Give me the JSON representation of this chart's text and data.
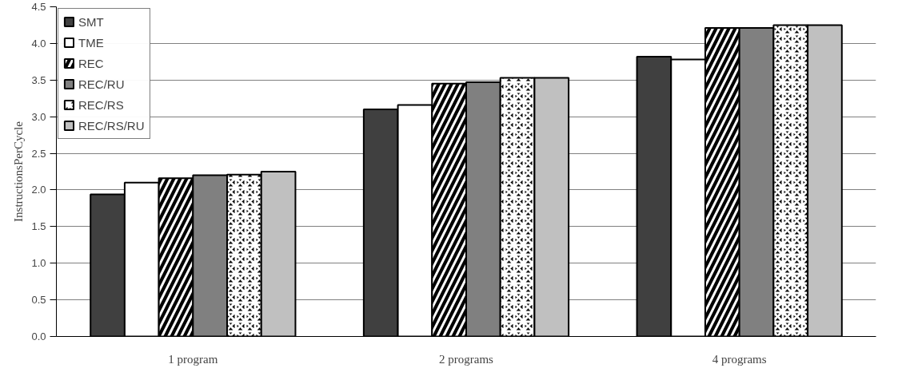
{
  "chart_data": {
    "type": "bar",
    "ylabel": "InstructionsPerCycle",
    "categories": [
      "1 program",
      "2 programs",
      "4 programs"
    ],
    "series": [
      {
        "name": "SMT",
        "color": "#404040",
        "values": [
          1.94,
          3.1,
          3.82
        ]
      },
      {
        "name": "TME",
        "color": "#ffffff",
        "values": [
          2.1,
          3.16,
          3.78
        ]
      },
      {
        "name": "REC",
        "color": "#000000",
        "values": [
          2.16,
          3.45,
          4.21
        ]
      },
      {
        "name": "REC/RU",
        "color": "#808080",
        "values": [
          2.2,
          3.47,
          4.21
        ]
      },
      {
        "name": "REC/RS",
        "color": "#000000",
        "values": [
          2.21,
          3.53,
          4.25
        ]
      },
      {
        "name": "REC/RS/RU",
        "color": "#c0c0c0",
        "values": [
          2.25,
          3.53,
          4.25
        ]
      }
    ],
    "ylim": [
      0,
      4.5
    ],
    "yticks": [
      {
        "value": 0,
        "label": "0.0"
      },
      {
        "value": 0.5,
        "label": "0.5"
      },
      {
        "value": 1,
        "label": "1.0"
      },
      {
        "value": 1.5,
        "label": "1.5"
      },
      {
        "value": 2,
        "label": "2.0"
      },
      {
        "value": 2.5,
        "label": "2.5"
      },
      {
        "value": 3,
        "label": "3.0"
      },
      {
        "value": 3.5,
        "label": "3.5"
      },
      {
        "value": 4,
        "label": "4.0"
      },
      {
        "value": 4.5,
        "label": "4.5"
      }
    ],
    "grid": "y",
    "legend": "top left"
  }
}
